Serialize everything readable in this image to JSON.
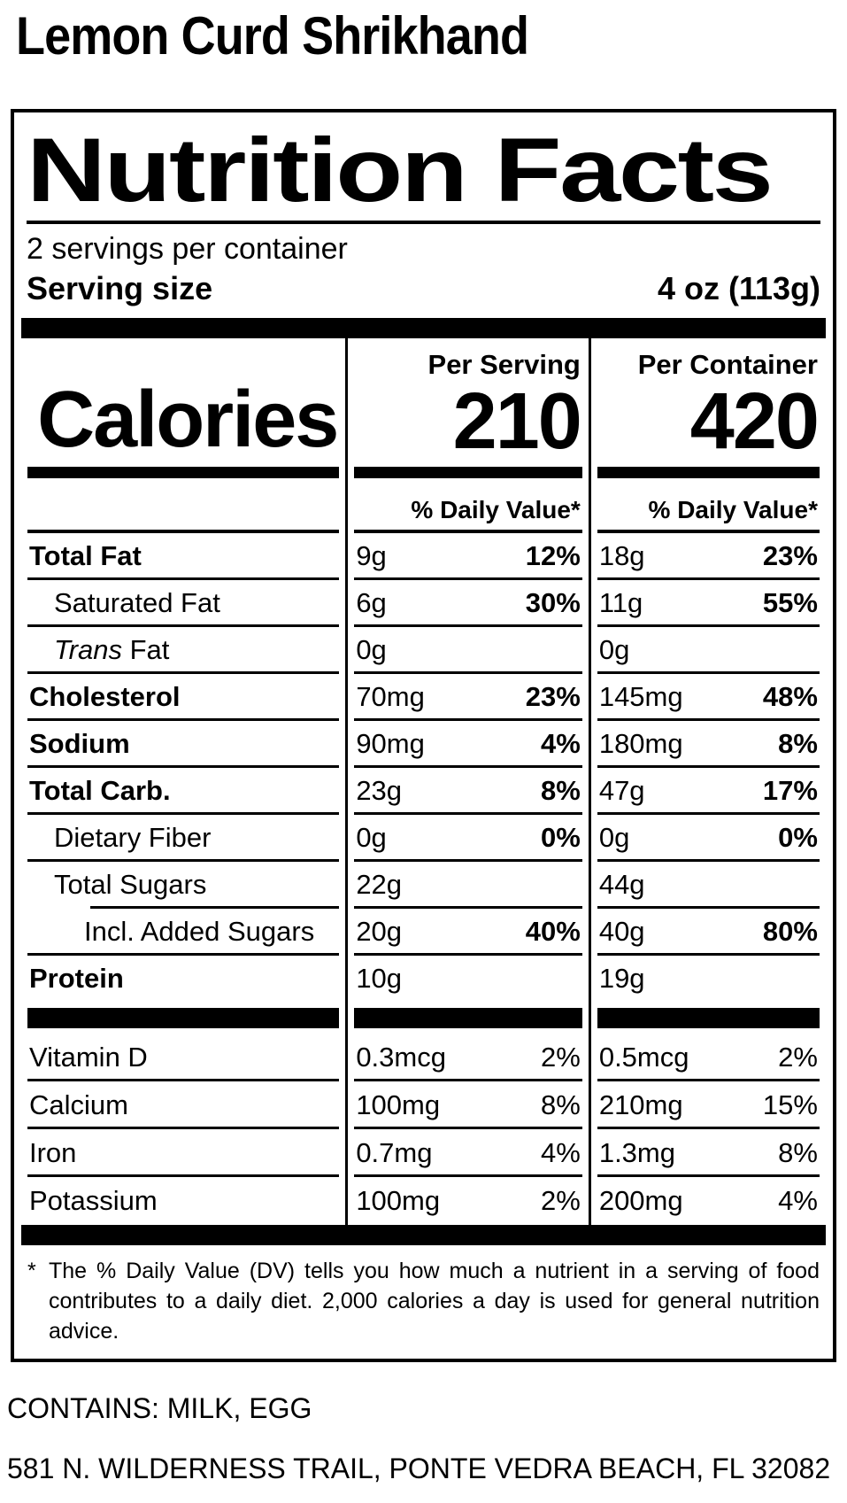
{
  "colors": {
    "text": "#000000",
    "background": "#ffffff"
  },
  "page": {
    "product_title": "Lemon Curd Shrikhand",
    "contains_statement": "CONTAINS: MILK, EGG",
    "address": "581 N. WILDERNESS TRAIL, PONTE VEDRA BEACH, FL 32082"
  },
  "label": {
    "title": "Nutrition Facts",
    "servings_per_container": "2 servings per container",
    "serving_size": {
      "label": "Serving size",
      "value": "4 oz (113g)"
    },
    "calories": {
      "label": "Calories",
      "serving_header": "Per Serving",
      "container_header": "Per Container",
      "per_serving": "210",
      "per_container": "420",
      "dv_header_serving": "% Daily Value*",
      "dv_header_container": "% Daily Value*"
    },
    "nutrients": [
      {
        "name": "Total Fat",
        "serving_amount": "9g",
        "serving_dv": "12%",
        "container_amount": "18g",
        "container_dv": "23%"
      },
      {
        "name": "Saturated Fat",
        "serving_amount": "6g",
        "serving_dv": "30%",
        "container_amount": "11g",
        "container_dv": "55%"
      },
      {
        "name_italic": "Trans",
        "name": "Fat",
        "serving_amount": "0g",
        "serving_dv": "",
        "container_amount": "0g",
        "container_dv": ""
      },
      {
        "name": "Cholesterol",
        "serving_amount": "70mg",
        "serving_dv": "23%",
        "container_amount": "145mg",
        "container_dv": "48%"
      },
      {
        "name": "Sodium",
        "serving_amount": "90mg",
        "serving_dv": "4%",
        "container_amount": "180mg",
        "container_dv": "8%"
      },
      {
        "name": "Total Carb.",
        "serving_amount": "23g",
        "serving_dv": "8%",
        "container_amount": "47g",
        "container_dv": "17%"
      },
      {
        "name": "Dietary Fiber",
        "serving_amount": "0g",
        "serving_dv": "0%",
        "container_amount": "0g",
        "container_dv": "0%"
      },
      {
        "name": "Total Sugars",
        "serving_amount": "22g",
        "serving_dv": "",
        "container_amount": "44g",
        "container_dv": ""
      },
      {
        "name": "Incl. Added Sugars",
        "serving_amount": "20g",
        "serving_dv": "40%",
        "container_amount": "40g",
        "container_dv": "80%"
      },
      {
        "name": "Protein",
        "serving_amount": "10g",
        "serving_dv": "",
        "container_amount": "19g",
        "container_dv": ""
      }
    ],
    "vitamins": [
      {
        "name": "Vitamin D",
        "serving_amount": "0.3mcg",
        "serving_dv": "2%",
        "container_amount": "0.5mcg",
        "container_dv": "2%"
      },
      {
        "name": "Calcium",
        "serving_amount": "100mg",
        "serving_dv": "8%",
        "container_amount": "210mg",
        "container_dv": "15%"
      },
      {
        "name": "Iron",
        "serving_amount": "0.7mg",
        "serving_dv": "4%",
        "container_amount": "1.3mg",
        "container_dv": "8%"
      },
      {
        "name": "Potassium",
        "serving_amount": "100mg",
        "serving_dv": "2%",
        "container_amount": "200mg",
        "container_dv": "4%"
      }
    ],
    "footnote": {
      "star": "*",
      "text": "The % Daily Value (DV) tells you how much a nutrient in a serving of food contributes to a daily diet. 2,000 calories a day is used for general nutrition advice."
    }
  }
}
